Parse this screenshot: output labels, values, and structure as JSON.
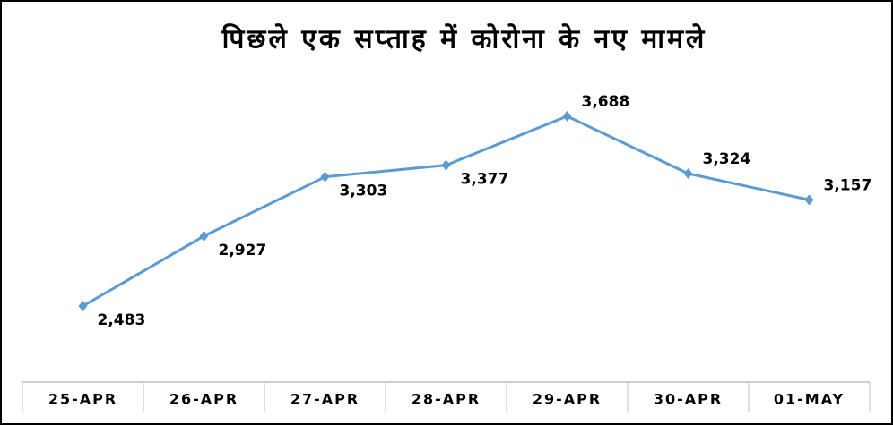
{
  "chart_data": {
    "type": "line",
    "title": "पिछले एक सप्ताह में कोरोना के नए मामले",
    "categories": [
      "25-APR",
      "26-APR",
      "27-APR",
      "28-APR",
      "29-APR",
      "30-APR",
      "01-MAY"
    ],
    "values": [
      2483,
      2927,
      3303,
      3377,
      3688,
      3324,
      3157
    ],
    "value_labels": [
      "2,483",
      "2,927",
      "3,303",
      "3,377",
      "3,688",
      "3,324",
      "3,157"
    ],
    "color": "#5b9bd5",
    "ylim": [
      2000,
      4000
    ]
  }
}
